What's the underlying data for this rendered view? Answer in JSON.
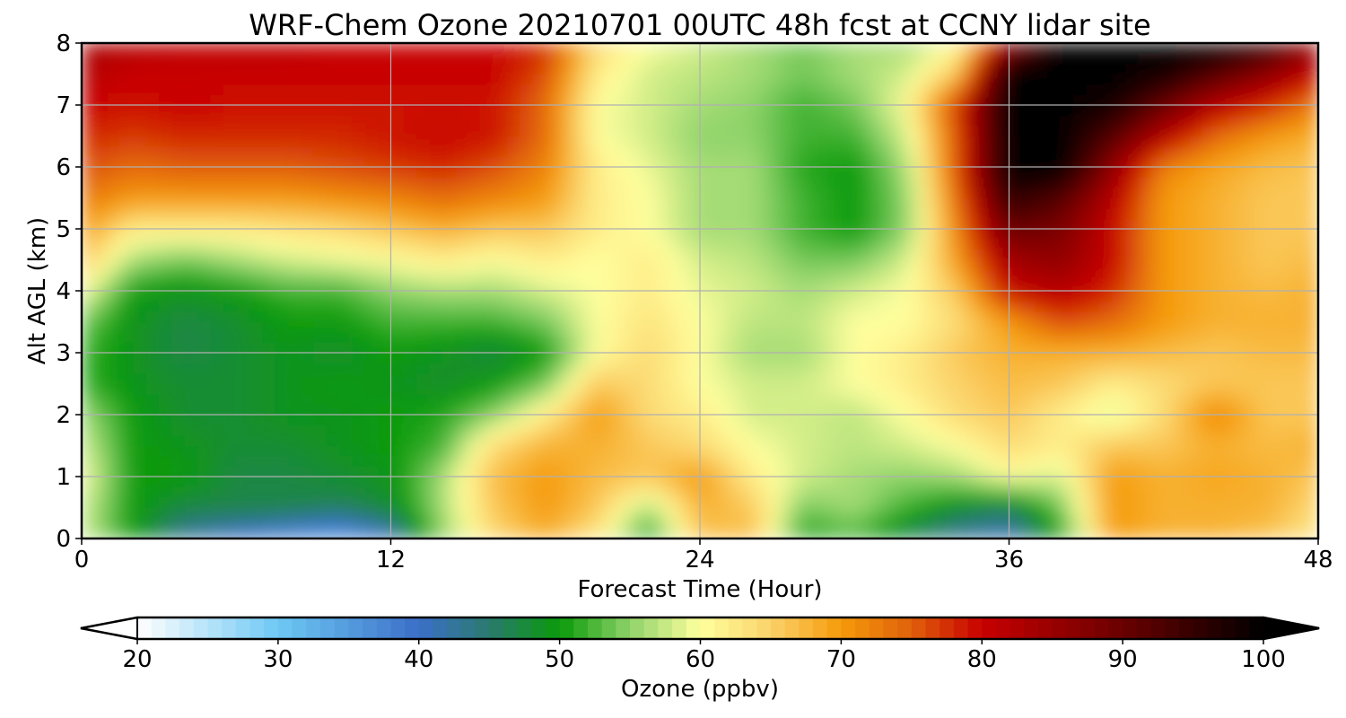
{
  "chart_data": {
    "type": "heatmap",
    "title": "WRF-Chem Ozone  20210701 00UTC 48h fcst at CCNY lidar site",
    "xlabel": "Forecast Time (Hour)",
    "ylabel": "Alt AGL (km)",
    "xlim": [
      0,
      48
    ],
    "ylim": [
      0,
      8
    ],
    "x_ticks": [
      0,
      12,
      24,
      36,
      48
    ],
    "y_ticks": [
      0,
      1,
      2,
      3,
      4,
      5,
      6,
      7,
      8
    ],
    "grid": true,
    "x": [
      0,
      2,
      4,
      6,
      8,
      10,
      12,
      14,
      16,
      18,
      20,
      22,
      24,
      26,
      28,
      30,
      32,
      34,
      36,
      38,
      40,
      42,
      44,
      46,
      48
    ],
    "y": [
      0,
      0.5,
      1,
      1.5,
      2,
      2.5,
      3,
      3.5,
      4,
      4.5,
      5,
      5.5,
      6,
      6.5,
      7,
      7.5,
      8
    ],
    "z": [
      [
        58,
        50,
        42,
        39,
        36,
        34,
        40,
        55,
        64,
        68,
        62,
        50,
        66,
        67,
        50,
        52,
        46,
        42,
        40,
        50,
        70,
        68,
        68,
        66,
        62
      ],
      [
        58,
        50,
        47,
        47,
        47,
        46,
        48,
        56,
        66,
        70,
        66,
        56,
        68,
        66,
        54,
        56,
        52,
        48,
        46,
        54,
        70,
        68,
        68,
        68,
        64
      ],
      [
        60,
        50,
        50,
        47,
        47,
        48,
        49,
        56,
        67,
        70,
        67,
        66,
        70,
        62,
        58,
        56,
        55,
        56,
        60,
        58,
        70,
        68,
        69,
        68,
        66
      ],
      [
        58,
        50,
        49,
        48,
        48,
        49,
        50,
        52,
        64,
        68,
        68,
        66,
        64,
        60,
        58,
        57,
        58,
        60,
        64,
        62,
        66,
        66,
        68,
        67,
        68
      ],
      [
        56,
        50,
        48,
        48,
        49,
        49,
        50,
        51,
        55,
        62,
        70,
        64,
        62,
        58,
        58,
        57,
        60,
        64,
        66,
        62,
        58,
        64,
        72,
        66,
        66
      ],
      [
        52,
        49,
        48,
        48,
        49,
        50,
        49,
        48,
        50,
        54,
        66,
        64,
        60,
        58,
        58,
        60,
        62,
        65,
        67,
        66,
        62,
        64,
        66,
        66,
        66
      ],
      [
        52,
        49,
        47,
        48,
        49,
        48,
        50,
        49,
        47,
        50,
        60,
        64,
        60,
        56,
        56,
        60,
        62,
        66,
        68,
        68,
        68,
        67,
        66,
        67,
        67
      ],
      [
        54,
        49,
        47,
        48,
        50,
        50,
        52,
        52,
        52,
        54,
        60,
        63,
        60,
        57,
        57,
        60,
        60,
        64,
        70,
        76,
        74,
        70,
        68,
        68,
        68
      ],
      [
        60,
        50,
        49,
        50,
        52,
        52,
        55,
        56,
        56,
        58,
        60,
        62,
        59,
        58,
        56,
        58,
        60,
        66,
        80,
        82,
        78,
        70,
        68,
        67,
        68
      ],
      [
        66,
        56,
        54,
        56,
        58,
        59,
        60,
        62,
        60,
        62,
        60,
        62,
        58,
        57,
        54,
        54,
        58,
        70,
        84,
        86,
        80,
        70,
        68,
        66,
        67
      ],
      [
        70,
        62,
        62,
        62,
        63,
        64,
        66,
        68,
        66,
        66,
        62,
        60,
        56,
        56,
        52,
        50,
        55,
        72,
        90,
        88,
        80,
        70,
        68,
        66,
        66
      ],
      [
        73,
        70,
        70,
        70,
        70,
        71,
        72,
        74,
        72,
        70,
        62,
        60,
        56,
        56,
        52,
        50,
        55,
        74,
        96,
        92,
        82,
        70,
        68,
        66,
        66
      ],
      [
        76,
        74,
        75,
        75,
        75,
        76,
        77,
        78,
        76,
        72,
        62,
        59,
        56,
        56,
        51,
        50,
        56,
        76,
        100,
        100,
        86,
        72,
        69,
        67,
        66
      ],
      [
        78,
        77,
        78,
        78,
        78,
        78,
        79,
        80,
        79,
        74,
        60,
        58,
        55,
        55,
        52,
        52,
        58,
        76,
        100,
        100,
        92,
        82,
        74,
        70,
        68
      ],
      [
        80,
        79,
        80,
        79,
        79,
        79,
        79,
        79,
        79,
        74,
        60,
        58,
        56,
        55,
        52,
        54,
        60,
        78,
        100,
        100,
        98,
        90,
        82,
        78,
        72
      ],
      [
        82,
        80,
        80,
        80,
        80,
        80,
        80,
        80,
        80,
        76,
        62,
        58,
        57,
        56,
        54,
        56,
        58,
        66,
        100,
        100,
        100,
        98,
        92,
        86,
        80
      ],
      [
        84,
        82,
        81,
        81,
        81,
        80,
        80,
        80,
        80,
        78,
        64,
        60,
        58,
        56,
        54,
        56,
        56,
        60,
        86,
        100,
        100,
        100,
        100,
        96,
        84
      ]
    ],
    "colorbar": {
      "label": "Ozone  (ppbv)",
      "min": 20,
      "max": 100,
      "ticks": [
        20,
        30,
        40,
        50,
        60,
        70,
        80,
        90,
        100
      ],
      "extend": "both",
      "stops": [
        {
          "v": 20,
          "c": "#ffffff"
        },
        {
          "v": 30,
          "c": "#6ec8f4"
        },
        {
          "v": 40,
          "c": "#3b6fc8"
        },
        {
          "v": 45,
          "c": "#2a7a6e"
        },
        {
          "v": 50,
          "c": "#0a9a0a"
        },
        {
          "v": 55,
          "c": "#8fd36a"
        },
        {
          "v": 60,
          "c": "#ffff9e"
        },
        {
          "v": 65,
          "c": "#fbd26a"
        },
        {
          "v": 70,
          "c": "#f59a0a"
        },
        {
          "v": 75,
          "c": "#e0600a"
        },
        {
          "v": 80,
          "c": "#c80000"
        },
        {
          "v": 90,
          "c": "#6a0000"
        },
        {
          "v": 100,
          "c": "#000000"
        }
      ]
    }
  }
}
